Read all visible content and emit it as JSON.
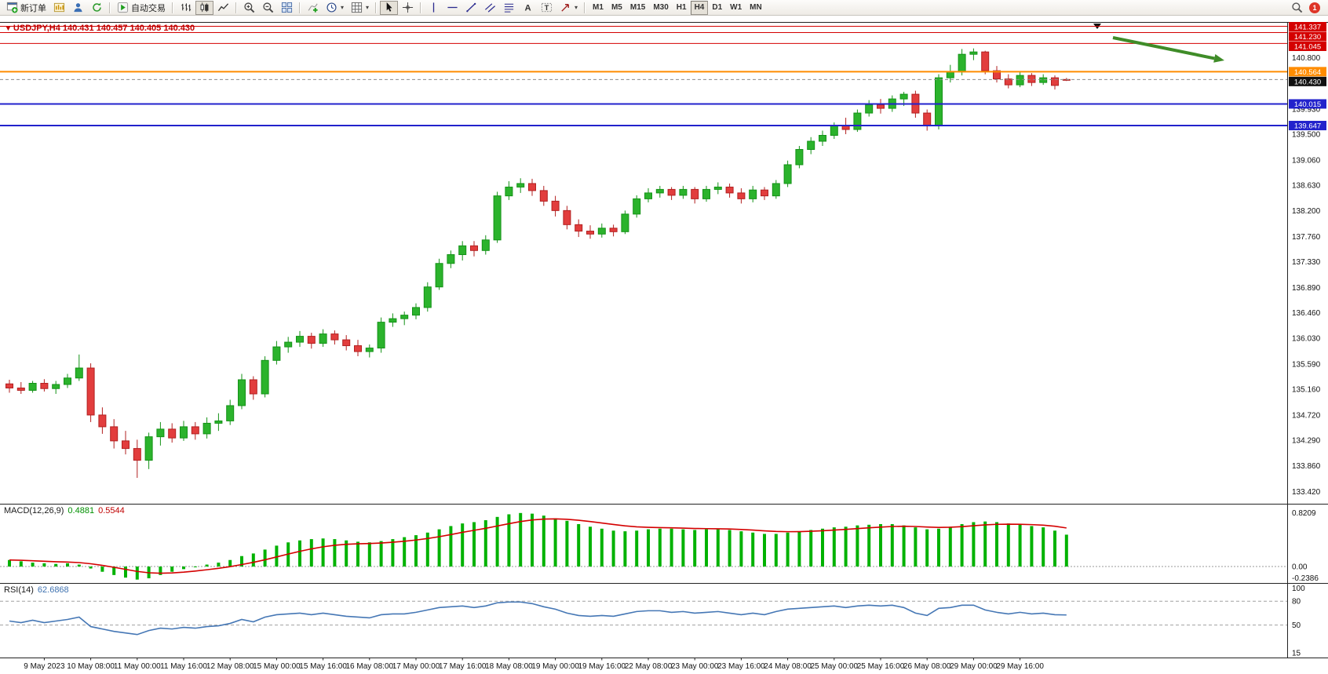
{
  "toolbar": {
    "new_order_label": "新订单",
    "auto_trading_label": "自动交易",
    "timeframes": [
      "M1",
      "M5",
      "M15",
      "M30",
      "H1",
      "H4",
      "D1",
      "W1",
      "MN"
    ],
    "active_timeframe": "H4",
    "notification_count": "1"
  },
  "time_axis": {
    "labels": [
      "9 May 2023",
      "10 May 08:00",
      "11 May 00:00",
      "11 May 16:00",
      "12 May 08:00",
      "15 May 00:00",
      "15 May 16:00",
      "16 May 08:00",
      "17 May 00:00",
      "17 May 16:00",
      "18 May 08:00",
      "19 May 00:00",
      "19 May 16:00",
      "22 May 08:00",
      "23 May 00:00",
      "23 May 16:00",
      "24 May 08:00",
      "25 May 00:00",
      "25 May 16:00",
      "26 May 08:00",
      "29 May 00:00",
      "29 May 16:00"
    ],
    "first_candle_index": 3,
    "step": 4
  },
  "price_axis": {
    "gridline_labels": [
      "140.800",
      "140.370",
      "139.930",
      "139.500",
      "139.060",
      "138.630",
      "138.200",
      "137.760",
      "137.330",
      "136.890",
      "136.460",
      "136.030",
      "135.590",
      "135.160",
      "134.720",
      "134.290",
      "133.860",
      "133.420"
    ],
    "markers": [
      {
        "price": 141.337,
        "label": "141.337",
        "color": "#d40000",
        "line_width": 1,
        "dashed": false
      },
      {
        "price": 141.23,
        "label": "141.230",
        "color": "#d40000",
        "line_width": 1,
        "dashed": false
      },
      {
        "price": 141.045,
        "label": "141.045",
        "color": "#d40000",
        "line_width": 1,
        "dashed": false
      },
      {
        "price": 140.564,
        "label": "140.564",
        "color": "#ff8c00",
        "line_width": 2,
        "dashed": false
      },
      {
        "price": 140.43,
        "label": "140.430",
        "color": "#111111",
        "line_width": 1,
        "dashed": true
      },
      {
        "price": 140.015,
        "label": "140.015",
        "color": "#2222cc",
        "line_width": 2,
        "dashed": false
      },
      {
        "price": 139.647,
        "label": "139.647",
        "color": "#2222cc",
        "line_width": 2,
        "dashed": false
      }
    ]
  },
  "chart_data": [
    {
      "type": "candlestick",
      "title": "USDJPY,H4 140.431 140.457 140.405 140.430",
      "symbol": "USDJPY",
      "period": "H4",
      "open": "140.431",
      "high": "140.457",
      "low": "140.405",
      "close": "140.430",
      "ylim": [
        133.21,
        141.41
      ],
      "up_color": "#2bb32c",
      "down_color": "#e23d3d",
      "up_border": "#149217",
      "down_border": "#b22020",
      "trend_arrow": {
        "shape": "arrow-down-right",
        "color": "#3f8c28"
      },
      "candles": [
        [
          135.25,
          135.32,
          135.1,
          135.18
        ],
        [
          135.18,
          135.28,
          135.08,
          135.14
        ],
        [
          135.14,
          135.3,
          135.1,
          135.26
        ],
        [
          135.26,
          135.33,
          135.12,
          135.17
        ],
        [
          135.17,
          135.3,
          135.08,
          135.24
        ],
        [
          135.24,
          135.42,
          135.18,
          135.35
        ],
        [
          135.35,
          135.75,
          135.3,
          135.52
        ],
        [
          135.52,
          135.6,
          134.6,
          134.72
        ],
        [
          134.72,
          134.85,
          134.4,
          134.52
        ],
        [
          134.52,
          134.65,
          134.15,
          134.28
        ],
        [
          134.28,
          134.45,
          134.05,
          134.15
        ],
        [
          134.15,
          134.3,
          133.65,
          133.95
        ],
        [
          133.95,
          134.42,
          133.8,
          134.35
        ],
        [
          134.35,
          134.6,
          134.2,
          134.48
        ],
        [
          134.48,
          134.58,
          134.25,
          134.33
        ],
        [
          134.33,
          134.62,
          134.28,
          134.52
        ],
        [
          134.52,
          134.6,
          134.3,
          134.4
        ],
        [
          134.4,
          134.68,
          134.32,
          134.58
        ],
        [
          134.58,
          134.75,
          134.45,
          134.62
        ],
        [
          134.62,
          134.98,
          134.55,
          134.88
        ],
        [
          134.88,
          135.42,
          134.82,
          135.32
        ],
        [
          135.32,
          135.38,
          134.98,
          135.08
        ],
        [
          135.08,
          135.72,
          135.02,
          135.65
        ],
        [
          135.65,
          135.98,
          135.58,
          135.88
        ],
        [
          135.88,
          136.05,
          135.78,
          135.96
        ],
        [
          135.96,
          136.15,
          135.88,
          136.06
        ],
        [
          136.06,
          136.12,
          135.85,
          135.94
        ],
        [
          135.94,
          136.18,
          135.88,
          136.1
        ],
        [
          136.1,
          136.16,
          135.92,
          136.0
        ],
        [
          136.0,
          136.08,
          135.82,
          135.9
        ],
        [
          135.9,
          136.0,
          135.72,
          135.8
        ],
        [
          135.8,
          135.92,
          135.7,
          135.86
        ],
        [
          135.86,
          136.38,
          135.78,
          136.3
        ],
        [
          136.3,
          136.45,
          136.22,
          136.36
        ],
        [
          136.36,
          136.48,
          136.25,
          136.42
        ],
        [
          136.42,
          136.62,
          136.35,
          136.55
        ],
        [
          136.55,
          136.98,
          136.48,
          136.9
        ],
        [
          136.9,
          137.38,
          136.85,
          137.3
        ],
        [
          137.3,
          137.52,
          137.22,
          137.45
        ],
        [
          137.45,
          137.68,
          137.35,
          137.6
        ],
        [
          137.6,
          137.68,
          137.42,
          137.52
        ],
        [
          137.52,
          137.78,
          137.45,
          137.7
        ],
        [
          137.7,
          138.52,
          137.65,
          138.45
        ],
        [
          138.45,
          138.7,
          138.38,
          138.6
        ],
        [
          138.6,
          138.75,
          138.5,
          138.66
        ],
        [
          138.66,
          138.74,
          138.45,
          138.54
        ],
        [
          138.54,
          138.62,
          138.28,
          138.36
        ],
        [
          138.36,
          138.45,
          138.1,
          138.2
        ],
        [
          138.2,
          138.28,
          137.88,
          137.96
        ],
        [
          137.96,
          138.05,
          137.75,
          137.85
        ],
        [
          137.85,
          137.95,
          137.72,
          137.8
        ],
        [
          137.8,
          137.98,
          137.74,
          137.9
        ],
        [
          137.9,
          137.96,
          137.76,
          137.84
        ],
        [
          137.84,
          138.2,
          137.8,
          138.14
        ],
        [
          138.14,
          138.46,
          138.08,
          138.4
        ],
        [
          138.4,
          138.58,
          138.34,
          138.5
        ],
        [
          138.5,
          138.62,
          138.42,
          138.56
        ],
        [
          138.56,
          138.6,
          138.38,
          138.46
        ],
        [
          138.46,
          138.62,
          138.4,
          138.56
        ],
        [
          138.56,
          138.6,
          138.32,
          138.4
        ],
        [
          138.4,
          138.62,
          138.35,
          138.56
        ],
        [
          138.56,
          138.68,
          138.48,
          138.6
        ],
        [
          138.6,
          138.66,
          138.42,
          138.5
        ],
        [
          138.5,
          138.58,
          138.32,
          138.4
        ],
        [
          138.4,
          138.62,
          138.34,
          138.55
        ],
        [
          138.55,
          138.6,
          138.38,
          138.45
        ],
        [
          138.45,
          138.72,
          138.4,
          138.66
        ],
        [
          138.66,
          139.05,
          138.6,
          138.98
        ],
        [
          138.98,
          139.3,
          138.92,
          139.24
        ],
        [
          139.24,
          139.45,
          139.16,
          139.38
        ],
        [
          139.38,
          139.56,
          139.3,
          139.48
        ],
        [
          139.48,
          139.7,
          139.42,
          139.64
        ],
        [
          139.64,
          139.78,
          139.5,
          139.58
        ],
        [
          139.58,
          139.92,
          139.54,
          139.86
        ],
        [
          139.86,
          140.08,
          139.8,
          140.0
        ],
        [
          140.0,
          140.1,
          139.85,
          139.94
        ],
        [
          139.94,
          140.16,
          139.88,
          140.1
        ],
        [
          140.1,
          140.22,
          139.98,
          140.18
        ],
        [
          140.18,
          140.24,
          139.78,
          139.86
        ],
        [
          139.86,
          139.92,
          139.56,
          139.64
        ],
        [
          139.64,
          140.52,
          139.58,
          140.46
        ],
        [
          140.46,
          140.68,
          140.38,
          140.56
        ],
        [
          140.56,
          140.95,
          140.5,
          140.86
        ],
        [
          140.86,
          140.96,
          140.76,
          140.9
        ],
        [
          140.9,
          140.92,
          140.52,
          140.58
        ],
        [
          140.58,
          140.66,
          140.38,
          140.44
        ],
        [
          140.44,
          140.52,
          140.28,
          140.34
        ],
        [
          140.34,
          140.56,
          140.3,
          140.5
        ],
        [
          140.5,
          140.54,
          140.32,
          140.38
        ],
        [
          140.38,
          140.52,
          140.34,
          140.46
        ],
        [
          140.46,
          140.5,
          140.26,
          140.33
        ],
        [
          140.431,
          140.457,
          140.405,
          140.43
        ]
      ]
    },
    {
      "type": "bar",
      "name": "MACD",
      "label": "MACD(12,26,9)",
      "value_main": "0.4881",
      "value_signal": "0.5544",
      "axis_labels": [
        "0.8209",
        "0.00",
        "-0.2386"
      ],
      "ylim": [
        -0.24,
        0.95
      ],
      "histogram_color": "#00b200",
      "signal_color": "#d40000",
      "histogram": [
        0.1,
        0.08,
        0.06,
        0.05,
        0.04,
        0.05,
        0.03,
        -0.03,
        -0.08,
        -0.13,
        -0.17,
        -0.2,
        -0.18,
        -0.13,
        -0.08,
        -0.04,
        0.0,
        0.03,
        0.06,
        0.1,
        0.16,
        0.2,
        0.26,
        0.32,
        0.37,
        0.4,
        0.42,
        0.43,
        0.42,
        0.4,
        0.38,
        0.37,
        0.39,
        0.42,
        0.45,
        0.48,
        0.52,
        0.57,
        0.62,
        0.66,
        0.68,
        0.71,
        0.76,
        0.8,
        0.82,
        0.81,
        0.78,
        0.74,
        0.7,
        0.65,
        0.61,
        0.58,
        0.55,
        0.54,
        0.55,
        0.57,
        0.58,
        0.58,
        0.57,
        0.56,
        0.57,
        0.57,
        0.56,
        0.54,
        0.52,
        0.5,
        0.5,
        0.52,
        0.54,
        0.56,
        0.58,
        0.6,
        0.61,
        0.63,
        0.64,
        0.65,
        0.65,
        0.63,
        0.6,
        0.57,
        0.58,
        0.61,
        0.65,
        0.68,
        0.69,
        0.68,
        0.66,
        0.64,
        0.62,
        0.6,
        0.55,
        0.4881
      ]
    },
    {
      "type": "line",
      "name": "RSI",
      "label": "RSI(14)",
      "value": "62.6868",
      "axis_labels": [
        "100",
        "80",
        "50",
        "15"
      ],
      "levels": [
        80,
        50
      ],
      "ylim": [
        10,
        102
      ],
      "line_color": "#4577b5",
      "values": [
        55,
        53,
        56,
        53,
        55,
        57,
        60,
        48,
        45,
        42,
        40,
        38,
        43,
        46,
        45,
        47,
        46,
        48,
        49,
        52,
        57,
        54,
        60,
        63,
        64,
        65,
        63,
        65,
        63,
        61,
        60,
        59,
        63,
        64,
        64,
        66,
        69,
        72,
        73,
        74,
        72,
        74,
        78,
        79,
        79,
        77,
        73,
        70,
        65,
        62,
        61,
        62,
        61,
        64,
        67,
        68,
        68,
        66,
        67,
        65,
        66,
        67,
        65,
        63,
        65,
        63,
        67,
        70,
        71,
        72,
        73,
        74,
        72,
        74,
        75,
        74,
        75,
        72,
        65,
        62,
        71,
        72,
        75,
        75,
        69,
        66,
        64,
        66,
        64,
        65,
        63,
        62.6868
      ]
    }
  ]
}
